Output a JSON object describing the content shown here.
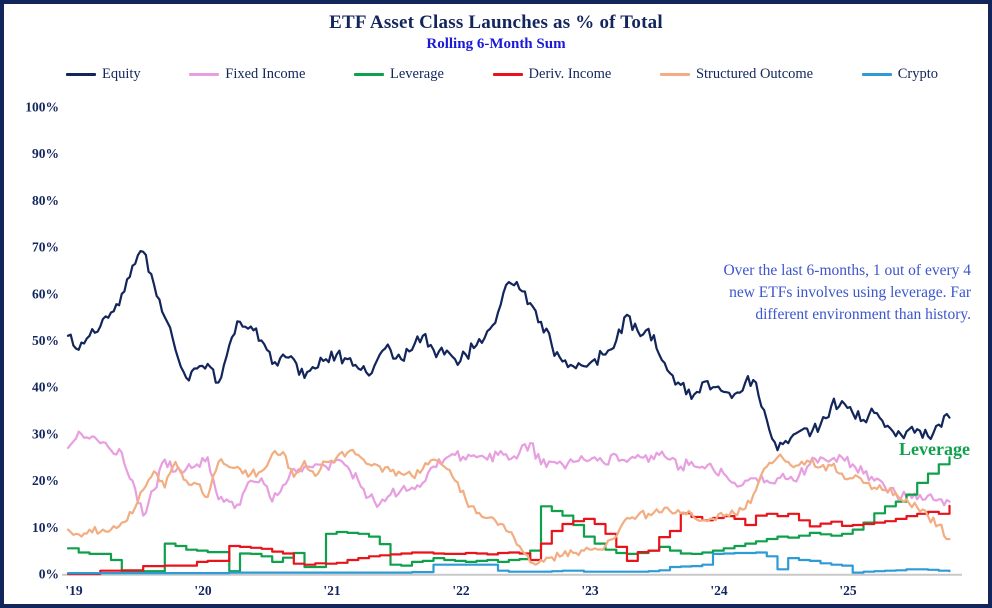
{
  "header": {
    "title": "ETF Asset Class Launches as % of Total",
    "subtitle": "Rolling 6-Month Sum"
  },
  "annotation": {
    "text": "Over the last 6-months, 1 out of every 4 new ETFs involves using leverage. Far different environment than history.",
    "color": "#3c55cd"
  },
  "callout": {
    "text": "Leverage",
    "color": "#0fa04c"
  },
  "colors": {
    "border": "#13265c",
    "title": "#13265c",
    "subtitle": "#1b1ad9",
    "axis_line": "#c9c9c9",
    "axis_labels": "#13265c"
  },
  "chart_data": {
    "type": "line",
    "title": "ETF Asset Class Launches as % of Total",
    "subtitle": "Rolling 6-Month Sum",
    "xlabel": "",
    "ylabel": "",
    "ylim": [
      0,
      100
    ],
    "xlim": [
      2018.95,
      2026.0
    ],
    "grid": false,
    "legend_position": "top",
    "y_ticks": [
      {
        "v": 0,
        "label": "0%"
      },
      {
        "v": 10,
        "label": "10%"
      },
      {
        "v": 20,
        "label": "20%"
      },
      {
        "v": 30,
        "label": "30%"
      },
      {
        "v": 40,
        "label": "40%"
      },
      {
        "v": 50,
        "label": "50%"
      },
      {
        "v": 60,
        "label": "60%"
      },
      {
        "v": 70,
        "label": "70%"
      },
      {
        "v": 80,
        "label": "80%"
      },
      {
        "v": 90,
        "label": "90%"
      },
      {
        "v": 100,
        "label": "100%"
      }
    ],
    "x_ticks": [
      {
        "t": 2019,
        "label": "'19"
      },
      {
        "t": 2020,
        "label": "'20"
      },
      {
        "t": 2021,
        "label": "'21"
      },
      {
        "t": 2022,
        "label": "'22"
      },
      {
        "t": 2023,
        "label": "'23"
      },
      {
        "t": 2024,
        "label": "'24"
      },
      {
        "t": 2025,
        "label": "'25"
      }
    ],
    "months": [
      "2019-01",
      "2019-02",
      "2019-03",
      "2019-04",
      "2019-05",
      "2019-06",
      "2019-07",
      "2019-08",
      "2019-09",
      "2019-10",
      "2019-11",
      "2019-12",
      "2020-01",
      "2020-02",
      "2020-03",
      "2020-04",
      "2020-05",
      "2020-06",
      "2020-07",
      "2020-08",
      "2020-09",
      "2020-10",
      "2020-11",
      "2020-12",
      "2021-01",
      "2021-02",
      "2021-03",
      "2021-04",
      "2021-05",
      "2021-06",
      "2021-07",
      "2021-08",
      "2021-09",
      "2021-10",
      "2021-11",
      "2021-12",
      "2022-01",
      "2022-02",
      "2022-03",
      "2022-04",
      "2022-05",
      "2022-06",
      "2022-07",
      "2022-08",
      "2022-09",
      "2022-10",
      "2022-11",
      "2022-12",
      "2023-01",
      "2023-02",
      "2023-03",
      "2023-04",
      "2023-05",
      "2023-06",
      "2023-07",
      "2023-08",
      "2023-09",
      "2023-10",
      "2023-11",
      "2023-12",
      "2024-01",
      "2024-02",
      "2024-03",
      "2024-04",
      "2024-05",
      "2024-06",
      "2024-07",
      "2024-08",
      "2024-09",
      "2024-10",
      "2024-11",
      "2024-12",
      "2025-01",
      "2025-02",
      "2025-03",
      "2025-04",
      "2025-05",
      "2025-06",
      "2025-07",
      "2025-08",
      "2025-09",
      "2025-10",
      "2025-11"
    ],
    "series": [
      {
        "name": "Equity",
        "color": "#13265c",
        "style": "noisy",
        "jitter": 1.5,
        "values": [
          51,
          48,
          51,
          53,
          56,
          60,
          66,
          69,
          62,
          55,
          48,
          42,
          44,
          45,
          41,
          49,
          54,
          53,
          50,
          45,
          47,
          46,
          42,
          44,
          46,
          47,
          46,
          44,
          42.5,
          47,
          48,
          46,
          48,
          51,
          48,
          47,
          46,
          47,
          49,
          52,
          56,
          62.5,
          61,
          58,
          54,
          49,
          45.5,
          44.5,
          44.5,
          46,
          47,
          50,
          55.5,
          52,
          52.5,
          47,
          43,
          40.5,
          37.5,
          41,
          40,
          39,
          38.5,
          41,
          41,
          33,
          26.5,
          28,
          30.5,
          29.5,
          32,
          36,
          37,
          34.5,
          33,
          34.5,
          31.5,
          29.5,
          30.5,
          31,
          29.5,
          32,
          33.5
        ]
      },
      {
        "name": "Fixed Income",
        "color": "#e79fe0",
        "style": "noisy",
        "jitter": 1.1,
        "values": [
          27,
          30.5,
          29,
          28,
          26.5,
          26,
          20,
          12.5,
          18,
          24.5,
          22,
          22.5,
          23.5,
          25,
          16,
          15.5,
          14.8,
          20,
          20.5,
          15.5,
          19,
          22.5,
          23,
          23.5,
          23,
          24.5,
          23,
          20,
          16.5,
          15,
          17,
          18,
          18.5,
          19.5,
          23,
          24.5,
          25.5,
          24.5,
          25,
          24.5,
          25.5,
          24.5,
          26,
          28,
          23.5,
          24,
          23.5,
          24,
          24.5,
          25,
          23.5,
          25.5,
          24,
          25.5,
          24,
          25.5,
          24.5,
          23,
          24,
          23,
          22.5,
          21.5,
          19.5,
          20,
          20.5,
          20,
          20.5,
          20.3,
          21,
          23.5,
          25,
          24.5,
          25,
          23.5,
          21.5,
          20,
          18.6,
          17.2,
          16.5,
          16,
          16.8,
          16,
          15.5
        ]
      },
      {
        "name": "Leverage",
        "color": "#0fa04c",
        "style": "step",
        "jitter": 0.15,
        "values": [
          5.5,
          4.6,
          4.3,
          4.3,
          3,
          0.6,
          0.6,
          0.6,
          0.6,
          6.5,
          6,
          5.2,
          5,
          4.7,
          4.7,
          0.6,
          4.4,
          4.3,
          3.8,
          2.6,
          3.5,
          4.5,
          1.5,
          1.5,
          8.6,
          9,
          8.8,
          8.6,
          8,
          6.4,
          2,
          1.8,
          2.6,
          2.8,
          3.4,
          3,
          2.8,
          2.6,
          2.8,
          3,
          2.6,
          3,
          3.2,
          5,
          14.5,
          13.5,
          12.5,
          10.5,
          8,
          6.5,
          5.2,
          4.5,
          4.3,
          4.5,
          5,
          5.8,
          5,
          4.4,
          4.3,
          4.6,
          5,
          5.5,
          6,
          6.5,
          7,
          7.5,
          8,
          7.8,
          8.2,
          8.8,
          8.5,
          8.2,
          8.6,
          9.5,
          11,
          13,
          14.5,
          15.5,
          17,
          19.5,
          21.5,
          23.5,
          25
        ]
      },
      {
        "name": "Deriv. Income",
        "color": "#e8131b",
        "style": "step",
        "jitter": 0.15,
        "values": [
          0,
          0,
          0,
          0.7,
          0.7,
          0.8,
          0.8,
          1.7,
          1.7,
          1.8,
          1.8,
          1.8,
          2.6,
          2.8,
          2.8,
          6,
          5.8,
          5.6,
          5.4,
          4.8,
          4.4,
          2.2,
          2,
          2.3,
          2.2,
          2.4,
          3,
          3.4,
          3.8,
          4,
          4.2,
          4.4,
          4.6,
          4.6,
          4.4,
          4.3,
          4.3,
          4.5,
          4.4,
          4.2,
          4.5,
          4.6,
          4.4,
          3,
          6.5,
          9.2,
          10.7,
          11.3,
          11.8,
          10.7,
          8.6,
          5.8,
          2.8,
          4.7,
          5,
          7.9,
          9.2,
          13,
          12.2,
          11.5,
          12,
          12.4,
          11.8,
          10.5,
          12.5,
          12.9,
          12.4,
          12.9,
          11.5,
          10.2,
          10.8,
          11.2,
          10.3,
          10.5,
          10.7,
          11,
          11.3,
          11.8,
          12.4,
          12.9,
          13.3,
          12.9,
          14.6
        ]
      },
      {
        "name": "Structured Outcome",
        "color": "#f2ae82",
        "style": "noisy",
        "jitter": 0.9,
        "values": [
          9.5,
          8.5,
          9.5,
          9,
          9.5,
          11,
          13,
          18,
          22,
          18.5,
          24,
          20,
          19.3,
          16.5,
          24,
          22.9,
          22.5,
          21.4,
          22,
          25.7,
          26.1,
          20.8,
          24.2,
          21,
          24,
          25,
          26,
          25.5,
          23.5,
          23,
          22,
          21.5,
          21,
          22.5,
          24.5,
          23,
          20,
          16,
          13,
          12,
          10.5,
          9,
          6,
          2.5,
          3,
          3.6,
          4,
          4.5,
          5,
          5.5,
          6,
          8,
          12,
          12.5,
          12.9,
          13.2,
          13.5,
          13,
          12.9,
          11.5,
          11.8,
          12.4,
          12.9,
          14,
          18,
          23,
          25,
          24,
          23.3,
          24,
          22.9,
          23.2,
          21.5,
          20.5,
          19.5,
          18.5,
          18,
          17.3,
          16,
          14.3,
          12.4,
          10.5,
          7.5
        ]
      },
      {
        "name": "Crypto",
        "color": "#2e9bd6",
        "style": "step",
        "jitter": 0.05,
        "values": [
          0.2,
          0.2,
          0.2,
          0.2,
          0.2,
          0.2,
          0.2,
          0.2,
          0.2,
          0.2,
          0.2,
          0.2,
          0.2,
          0.2,
          0.2,
          0.3,
          0.3,
          0.3,
          0.3,
          0.3,
          0.3,
          0.3,
          0.3,
          0.3,
          0.3,
          0.3,
          0.3,
          0.3,
          0.3,
          0.3,
          0.3,
          0.3,
          0.4,
          0.4,
          2,
          2,
          2,
          2,
          2,
          2,
          0.7,
          0.5,
          0.5,
          0.5,
          0.5,
          0.6,
          0.7,
          0.7,
          0.5,
          0.5,
          0.5,
          0.5,
          0.5,
          0.5,
          0.6,
          0.8,
          1.5,
          1.6,
          1.7,
          2,
          4.3,
          4.4,
          4.5,
          4.5,
          4.6,
          3.8,
          1,
          3.4,
          3,
          2.8,
          2.3,
          2,
          1.8,
          0.3,
          0.5,
          0.6,
          0.7,
          0.8,
          1,
          1,
          0.9,
          0.7,
          0.6
        ]
      }
    ]
  }
}
